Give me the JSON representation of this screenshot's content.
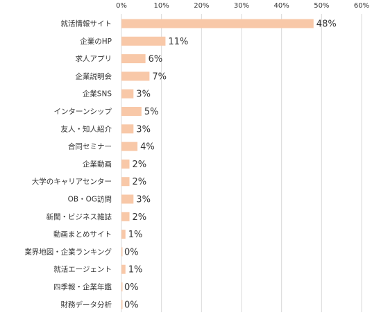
{
  "chart_data": {
    "type": "bar",
    "orientation": "horizontal",
    "categories": [
      "就活情報サイト",
      "企業のHP",
      "求人アプリ",
      "企業説明会",
      "企業SNS",
      "インターンシップ",
      "友人・知人紹介",
      "合同セミナー",
      "企業動画",
      "大学のキャリアセンター",
      "OB・OG訪問",
      "新聞・ビジネス雑誌",
      "動画まとめサイト",
      "業界地図・企業ランキング",
      "就活エージェント",
      "四季報・企業年鑑",
      "財務データ分析"
    ],
    "values": [
      48,
      11,
      6,
      7,
      3,
      5,
      3,
      4,
      2,
      2,
      3,
      2,
      1,
      0,
      1,
      0,
      0
    ],
    "data_labels": [
      "48%",
      "11%",
      "6%",
      "7%",
      "3%",
      "5%",
      "3%",
      "4%",
      "2%",
      "2%",
      "3%",
      "2%",
      "1%",
      "0%",
      "1%",
      "0%",
      "0%"
    ],
    "xlim": [
      0,
      60
    ],
    "xticks": [
      0,
      10,
      20,
      30,
      40,
      50,
      60
    ],
    "xtick_labels": [
      "0%",
      "10%",
      "20%",
      "30%",
      "40%",
      "50%",
      "60%"
    ],
    "x_axis_position": "top",
    "grid": true,
    "legend": "none",
    "bar_color": "#f8c8a8",
    "grid_color": "#d9d9d9",
    "text_color": "#333333"
  }
}
